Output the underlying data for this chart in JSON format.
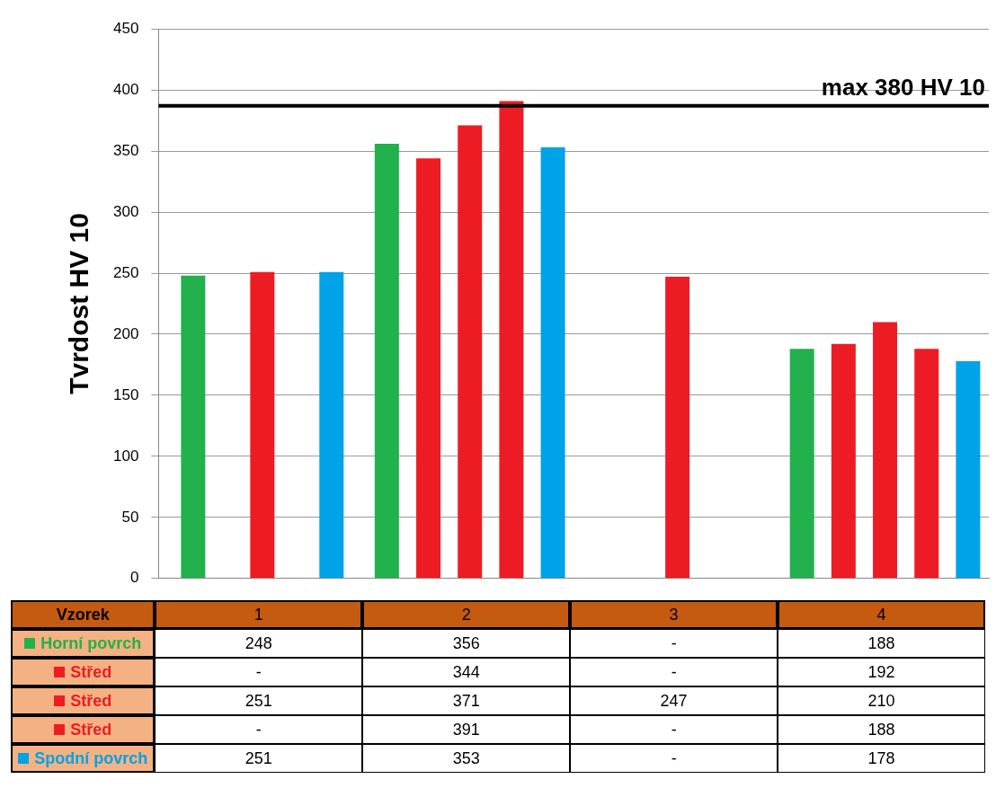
{
  "chart_data": {
    "type": "bar",
    "ylabel": "Tvrdost HV 10",
    "xlabel": "Vzorek",
    "categories": [
      "1",
      "2",
      "3",
      "4"
    ],
    "series": [
      {
        "name": "Horní povrch",
        "color": "#22b14c",
        "values": [
          248,
          356,
          null,
          188
        ],
        "value_labels": [
          "248",
          "356",
          "-",
          "188"
        ]
      },
      {
        "name": "Střed",
        "color": "#ed1c24",
        "values": [
          null,
          344,
          null,
          192
        ],
        "value_labels": [
          "-",
          "344",
          "-",
          "192"
        ]
      },
      {
        "name": "Střed",
        "color": "#ed1c24",
        "values": [
          251,
          371,
          247,
          210
        ],
        "value_labels": [
          "251",
          "371",
          "247",
          "210"
        ]
      },
      {
        "name": "Střed",
        "color": "#ed1c24",
        "values": [
          null,
          391,
          null,
          188
        ],
        "value_labels": [
          "-",
          "391",
          "-",
          "188"
        ]
      },
      {
        "name": "Spodní povrch",
        "color": "#00a2e8",
        "values": [
          251,
          353,
          null,
          178
        ],
        "value_labels": [
          "251",
          "353",
          "-",
          "178"
        ]
      }
    ],
    "ylim": [
      0,
      450
    ],
    "yticks": [
      0,
      50,
      100,
      150,
      200,
      250,
      300,
      350,
      400,
      450
    ],
    "grid": "y",
    "legend": "bottom left",
    "ref_lines": [
      {
        "axis": "y",
        "value": 387,
        "label": "max 380 HV 10",
        "color": "#000000"
      }
    ]
  }
}
